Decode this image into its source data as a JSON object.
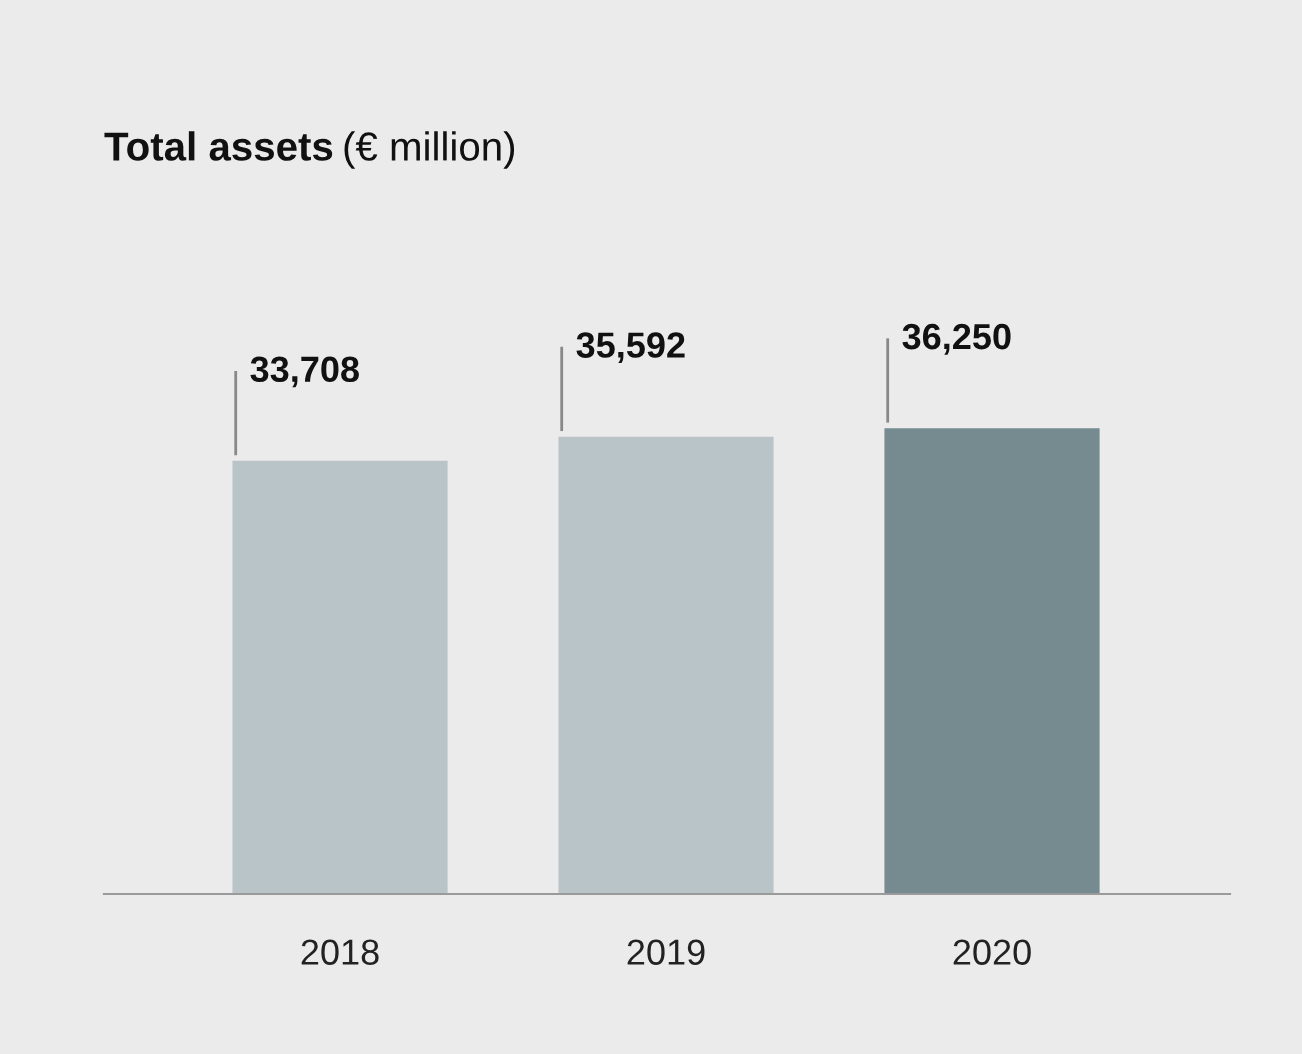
{
  "chart_data": {
    "type": "bar",
    "title": "Total assets",
    "subtitle": "(€ million)",
    "categories": [
      "2018",
      "2019",
      "2020"
    ],
    "values": [
      33708,
      35592,
      36250
    ],
    "colors": [
      "#b9c4c9",
      "#b9c4c9",
      "#758b90"
    ],
    "data_labels": true,
    "value_labels": [
      "33,708",
      "35,592",
      "36,250"
    ],
    "grid": false,
    "legend": false
  }
}
